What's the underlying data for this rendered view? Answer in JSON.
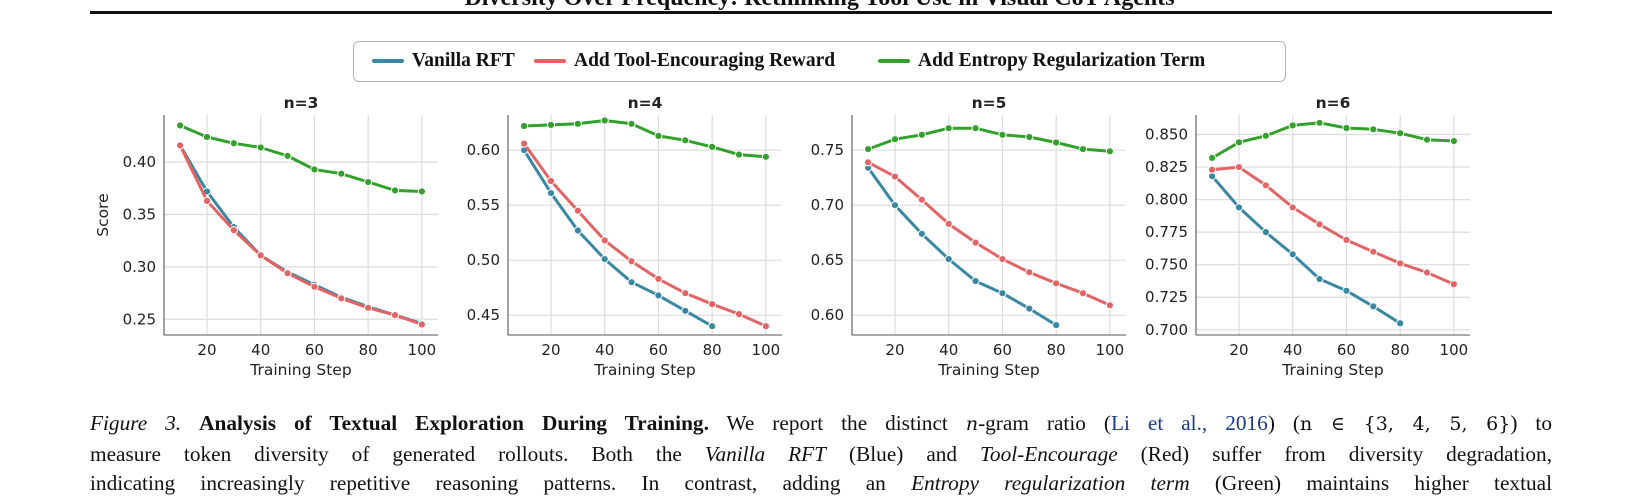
{
  "header": {
    "title": "Diversity Over Frequency: Rethinking Tool Use in Visual CoT Agents"
  },
  "legend": [
    {
      "label": "Vanilla RFT",
      "color": "#3a87a4"
    },
    {
      "label": "Add Tool-Encouraging Reward",
      "color": "#e26464"
    },
    {
      "label": "Add Entropy Regularization Term",
      "color": "#33a02c"
    }
  ],
  "chart_data": [
    {
      "type": "line",
      "title": "n=3",
      "xlabel": "Training Step",
      "ylabel": "Score",
      "xlim": [
        4,
        106
      ],
      "ylim": [
        0.235,
        0.445
      ],
      "xticks": [
        20,
        40,
        60,
        80,
        100
      ],
      "yticks": [
        0.25,
        0.3,
        0.35,
        0.4
      ],
      "ytick_labels": [
        "0.25",
        "0.30",
        "0.35",
        "0.40"
      ],
      "grid": true,
      "series": [
        {
          "name": "Vanilla RFT",
          "color": "#3a87a4",
          "x": [
            10,
            20,
            30,
            40,
            50,
            60,
            70,
            80,
            90,
            100
          ],
          "y": [
            0.416,
            0.372,
            0.338,
            0.311,
            0.295,
            0.283,
            0.271,
            0.262,
            0.254,
            0.246
          ]
        },
        {
          "name": "Add Tool-Encouraging Reward",
          "color": "#e26464",
          "x": [
            10,
            20,
            30,
            40,
            50,
            60,
            70,
            80,
            90,
            100
          ],
          "y": [
            0.416,
            0.363,
            0.335,
            0.311,
            0.294,
            0.281,
            0.27,
            0.261,
            0.254,
            0.245
          ]
        },
        {
          "name": "Add Entropy Regularization Term",
          "color": "#33a02c",
          "x": [
            10,
            20,
            30,
            40,
            50,
            60,
            70,
            80,
            90,
            100
          ],
          "y": [
            0.435,
            0.424,
            0.418,
            0.414,
            0.406,
            0.393,
            0.389,
            0.381,
            0.373,
            0.372
          ]
        }
      ]
    },
    {
      "type": "line",
      "title": "n=4",
      "xlabel": "Training Step",
      "ylabel": "",
      "xlim": [
        4,
        106
      ],
      "ylim": [
        0.432,
        0.632
      ],
      "xticks": [
        20,
        40,
        60,
        80,
        100
      ],
      "yticks": [
        0.45,
        0.5,
        0.55,
        0.6
      ],
      "ytick_labels": [
        "0.45",
        "0.50",
        "0.55",
        "0.60"
      ],
      "grid": true,
      "series": [
        {
          "name": "Vanilla RFT",
          "color": "#3a87a4",
          "x": [
            10,
            20,
            30,
            40,
            50,
            60,
            70,
            80
          ],
          "y": [
            0.6,
            0.561,
            0.527,
            0.501,
            0.48,
            0.468,
            0.454,
            0.44
          ]
        },
        {
          "name": "Add Tool-Encouraging Reward",
          "color": "#e26464",
          "x": [
            10,
            20,
            30,
            40,
            50,
            60,
            70,
            80,
            90,
            100
          ],
          "y": [
            0.606,
            0.572,
            0.545,
            0.518,
            0.499,
            0.483,
            0.47,
            0.46,
            0.451,
            0.44
          ]
        },
        {
          "name": "Add Entropy Regularization Term",
          "color": "#33a02c",
          "x": [
            10,
            20,
            30,
            40,
            50,
            60,
            70,
            80,
            90,
            100
          ],
          "y": [
            0.622,
            0.623,
            0.624,
            0.627,
            0.624,
            0.613,
            0.609,
            0.603,
            0.596,
            0.594
          ]
        }
      ]
    },
    {
      "type": "line",
      "title": "n=5",
      "xlabel": "Training Step",
      "ylabel": "",
      "xlim": [
        4,
        106
      ],
      "ylim": [
        0.582,
        0.782
      ],
      "xticks": [
        20,
        40,
        60,
        80,
        100
      ],
      "yticks": [
        0.6,
        0.65,
        0.7,
        0.75
      ],
      "ytick_labels": [
        "0.60",
        "0.65",
        "0.70",
        "0.75"
      ],
      "grid": true,
      "series": [
        {
          "name": "Vanilla RFT",
          "color": "#3a87a4",
          "x": [
            10,
            20,
            30,
            40,
            50,
            60,
            70,
            80
          ],
          "y": [
            0.734,
            0.7,
            0.674,
            0.651,
            0.631,
            0.62,
            0.606,
            0.591
          ]
        },
        {
          "name": "Add Tool-Encouraging Reward",
          "color": "#e26464",
          "x": [
            10,
            20,
            30,
            40,
            50,
            60,
            70,
            80,
            90,
            100
          ],
          "y": [
            0.739,
            0.726,
            0.705,
            0.683,
            0.666,
            0.651,
            0.639,
            0.629,
            0.62,
            0.609
          ]
        },
        {
          "name": "Add Entropy Regularization Term",
          "color": "#33a02c",
          "x": [
            10,
            20,
            30,
            40,
            50,
            60,
            70,
            80,
            90,
            100
          ],
          "y": [
            0.751,
            0.76,
            0.764,
            0.77,
            0.77,
            0.764,
            0.762,
            0.757,
            0.751,
            0.749
          ]
        }
      ]
    },
    {
      "type": "line",
      "title": "n=6",
      "xlabel": "Training Step",
      "ylabel": "",
      "xlim": [
        4,
        106
      ],
      "ylim": [
        0.696,
        0.865
      ],
      "xticks": [
        20,
        40,
        60,
        80,
        100
      ],
      "yticks": [
        0.7,
        0.725,
        0.75,
        0.775,
        0.8,
        0.825,
        0.85
      ],
      "ytick_labels": [
        "0.700",
        "0.725",
        "0.750",
        "0.775",
        "0.800",
        "0.825",
        "0.850"
      ],
      "grid": true,
      "series": [
        {
          "name": "Vanilla RFT",
          "color": "#3a87a4",
          "x": [
            10,
            20,
            30,
            40,
            50,
            60,
            70,
            80
          ],
          "y": [
            0.818,
            0.794,
            0.775,
            0.758,
            0.739,
            0.73,
            0.718,
            0.705
          ]
        },
        {
          "name": "Add Tool-Encouraging Reward",
          "color": "#e26464",
          "x": [
            10,
            20,
            30,
            40,
            50,
            60,
            70,
            80,
            90,
            100
          ],
          "y": [
            0.823,
            0.825,
            0.811,
            0.794,
            0.781,
            0.769,
            0.76,
            0.751,
            0.744,
            0.735
          ]
        },
        {
          "name": "Add Entropy Regularization Term",
          "color": "#33a02c",
          "x": [
            10,
            20,
            30,
            40,
            50,
            60,
            70,
            80,
            90,
            100
          ],
          "y": [
            0.832,
            0.844,
            0.849,
            0.857,
            0.859,
            0.855,
            0.854,
            0.851,
            0.846,
            0.845
          ]
        }
      ]
    }
  ],
  "caption": {
    "figure_label": "Figure 3.",
    "bold_title": "Analysis of Textual Exploration During Training.",
    "t1": "We report the distinct",
    "n": "n",
    "t2": "-gram ratio (",
    "cite": "Li et al., 2016",
    "t3": ") (",
    "set_expr": "n ∈ {3, 4, 5, 6}",
    "t4": ") to",
    "t5": "measure token diversity of generated rollouts. Both the",
    "em1": "Vanilla RFT",
    "t6": "(Blue) and",
    "em2": "Tool-Encourage",
    "t7": "(Red) suffer from diversity degradation,",
    "t8": "indicating increasingly repetitive reasoning patterns. In contrast, adding an",
    "em3": "Entropy regularization term",
    "t9": "(Green) maintains higher textual"
  }
}
